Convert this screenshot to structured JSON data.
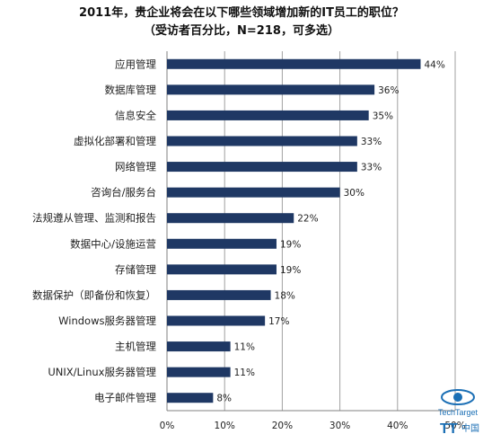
{
  "chart_data": {
    "type": "bar",
    "orientation": "horizontal",
    "title": "2011年，贵企业将会在以下哪些领域增加新的IT员工的职位？",
    "subtitle": "（受访者百分比，N=218，可多选）",
    "categories": [
      "应用管理",
      "数据库管理",
      "信息安全",
      "虚拟化部署和管理",
      "网络管理",
      "咨询台/服务台",
      "法规遵从管理、监测和报告",
      "数据中心/设施运营",
      "存储管理",
      "数据保护（即备份和恢复）",
      "Windows服务器管理",
      "主机管理",
      "UNIX/Linux服务器管理",
      "电子邮件管理"
    ],
    "values": [
      44,
      36,
      35,
      33,
      33,
      30,
      22,
      19,
      19,
      18,
      17,
      11,
      11,
      8
    ],
    "value_labels": [
      "44%",
      "36%",
      "35%",
      "33%",
      "33%",
      "30%",
      "22%",
      "19%",
      "19%",
      "18%",
      "17%",
      "11%",
      "11%",
      "8%"
    ],
    "xlim": [
      0,
      50
    ],
    "xticks": [
      "0%",
      "10%",
      "20%",
      "30%",
      "40%",
      "50%"
    ],
    "grid": "vertical",
    "bar_color": "#1f3864",
    "grid_color": "#a0a0a0"
  },
  "logo": {
    "text_line1": "TechTarget",
    "text_line2": "中国",
    "text_line3": "TT"
  }
}
